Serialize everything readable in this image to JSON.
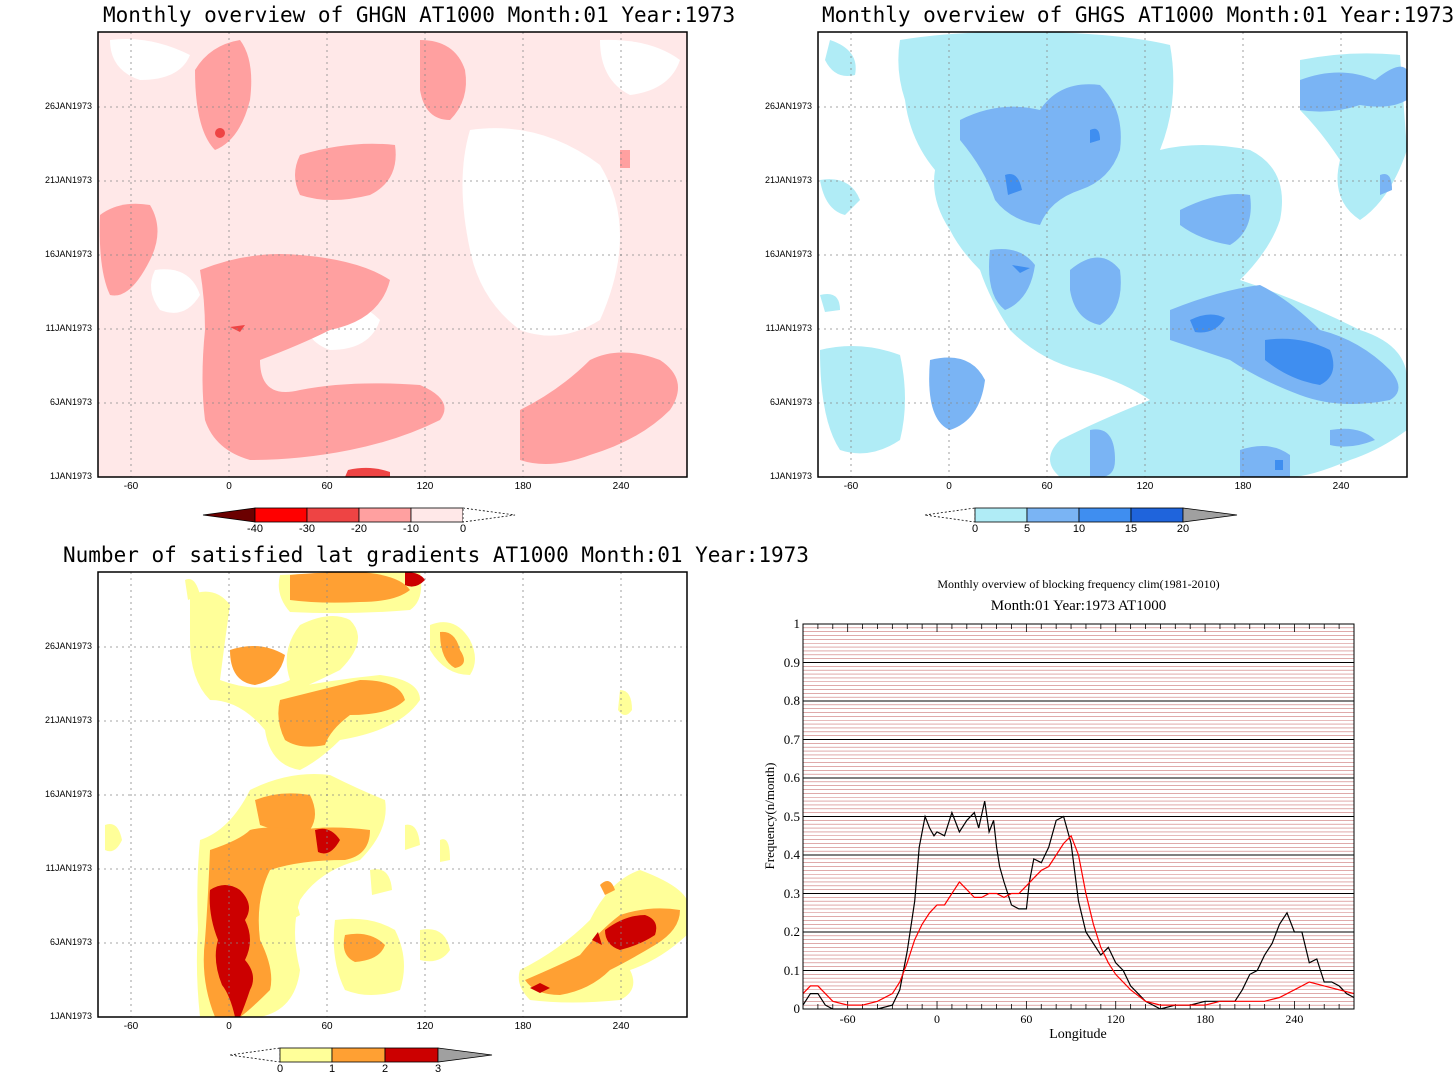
{
  "chart_data": [
    {
      "type": "heatmap",
      "title": "Monthly overview of GHGN AT1000 Month:01 Year:1973",
      "x_ticks": [
        "-60",
        "0",
        "60",
        "120",
        "180",
        "240"
      ],
      "y_ticks": [
        "1JAN1973",
        "6JAN1973",
        "11JAN1973",
        "16JAN1973",
        "21JAN1973",
        "26JAN1973"
      ],
      "colorbar": {
        "levels": [
          "-40",
          "-30",
          "-20",
          "-10",
          "0"
        ],
        "colors": [
          "#6b0000",
          "#ff0000",
          "#ee4444",
          "#ffa0a0",
          "#ffe8e8"
        ]
      }
    },
    {
      "type": "heatmap",
      "title": "Monthly overview of GHGS AT1000 Month:01 Year:1973",
      "x_ticks": [
        "-60",
        "0",
        "60",
        "120",
        "180",
        "240"
      ],
      "y_ticks": [
        "1JAN1973",
        "6JAN1973",
        "11JAN1973",
        "16JAN1973",
        "21JAN1973",
        "26JAN1973"
      ],
      "colorbar": {
        "levels": [
          "0",
          "5",
          "10",
          "15",
          "20"
        ],
        "colors": [
          "#b0ecf6",
          "#7ab4f4",
          "#3f8ef0",
          "#1f64dc",
          "#a0a0a0"
        ]
      }
    },
    {
      "type": "heatmap",
      "title": "Number of satisfied lat gradients AT1000 Month:01 Year:1973",
      "x_ticks": [
        "-60",
        "0",
        "60",
        "120",
        "180",
        "240"
      ],
      "y_ticks": [
        "1JAN1973",
        "6JAN1973",
        "11JAN1973",
        "16JAN1973",
        "21JAN1973",
        "26JAN1973"
      ],
      "colorbar": {
        "levels": [
          "0",
          "1",
          "2",
          "3"
        ],
        "colors": [
          "#ffff99",
          "#ffa033",
          "#cc0000",
          "#a0a0a0"
        ]
      }
    },
    {
      "type": "line",
      "title": "Monthly overview of blocking frequency clim(1981-2010)",
      "subtitle": "Month:01 Year:1973  AT1000",
      "xlabel": "Longitude",
      "ylabel": "Frequency(n/month)",
      "xlim": [
        -90,
        280
      ],
      "ylim": [
        0,
        1
      ],
      "x_ticks": [
        "-60",
        "0",
        "60",
        "120",
        "180",
        "240"
      ],
      "y_ticks": [
        "0",
        "0.1",
        "0.2",
        "0.3",
        "0.4",
        "0.5",
        "0.6",
        "0.7",
        "0.8",
        "0.9",
        "1"
      ],
      "series": [
        {
          "color": "#000000",
          "x": [
            -90,
            -85,
            -80,
            -75,
            -70,
            -60,
            -50,
            -40,
            -30,
            -25,
            -20,
            -15,
            -12,
            -8,
            -5,
            -2,
            0,
            5,
            10,
            15,
            20,
            25,
            28,
            32,
            35,
            38,
            40,
            42,
            45,
            50,
            55,
            60,
            62,
            65,
            70,
            75,
            80,
            85,
            90,
            95,
            100,
            105,
            110,
            115,
            120,
            125,
            130,
            135,
            140,
            150,
            160,
            170,
            180,
            190,
            200,
            205,
            210,
            215,
            220,
            225,
            230,
            235,
            240,
            245,
            250,
            255,
            260,
            265,
            270,
            275,
            280
          ],
          "y": [
            0.01,
            0.04,
            0.04,
            0.01,
            0.0,
            0.0,
            0.0,
            0.0,
            0.01,
            0.05,
            0.15,
            0.28,
            0.42,
            0.5,
            0.47,
            0.45,
            0.46,
            0.45,
            0.51,
            0.46,
            0.49,
            0.51,
            0.47,
            0.54,
            0.46,
            0.49,
            0.42,
            0.37,
            0.33,
            0.27,
            0.26,
            0.26,
            0.33,
            0.39,
            0.38,
            0.42,
            0.49,
            0.5,
            0.43,
            0.28,
            0.2,
            0.17,
            0.14,
            0.16,
            0.12,
            0.1,
            0.06,
            0.04,
            0.02,
            0.0,
            0.01,
            0.01,
            0.02,
            0.02,
            0.02,
            0.05,
            0.09,
            0.1,
            0.14,
            0.17,
            0.22,
            0.25,
            0.2,
            0.2,
            0.12,
            0.13,
            0.07,
            0.07,
            0.06,
            0.04,
            0.03
          ]
        },
        {
          "color": "#ff0000",
          "x": [
            -90,
            -85,
            -80,
            -75,
            -70,
            -60,
            -50,
            -40,
            -30,
            -25,
            -20,
            -15,
            -10,
            -5,
            0,
            5,
            10,
            15,
            20,
            25,
            30,
            35,
            40,
            45,
            50,
            55,
            60,
            65,
            70,
            75,
            80,
            85,
            90,
            95,
            100,
            105,
            110,
            115,
            120,
            130,
            140,
            150,
            160,
            170,
            180,
            190,
            200,
            210,
            220,
            230,
            240,
            250,
            260,
            270,
            280
          ],
          "y": [
            0.04,
            0.06,
            0.06,
            0.04,
            0.02,
            0.01,
            0.01,
            0.02,
            0.04,
            0.07,
            0.12,
            0.18,
            0.22,
            0.25,
            0.27,
            0.27,
            0.3,
            0.33,
            0.31,
            0.29,
            0.29,
            0.3,
            0.3,
            0.29,
            0.3,
            0.3,
            0.32,
            0.34,
            0.36,
            0.37,
            0.4,
            0.43,
            0.45,
            0.4,
            0.3,
            0.22,
            0.16,
            0.12,
            0.09,
            0.05,
            0.02,
            0.01,
            0.01,
            0.01,
            0.01,
            0.02,
            0.02,
            0.02,
            0.02,
            0.03,
            0.05,
            0.07,
            0.06,
            0.05,
            0.04
          ]
        }
      ]
    }
  ]
}
